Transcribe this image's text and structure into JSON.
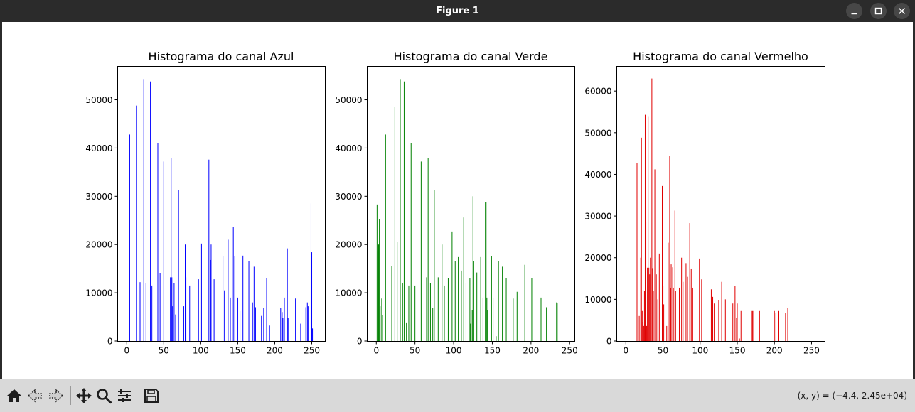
{
  "window": {
    "title": "Figure 1",
    "buttons": [
      "minimize-icon",
      "maximize-icon",
      "close-icon"
    ]
  },
  "toolbar": {
    "tools": [
      "home-icon",
      "back-arrow-icon",
      "forward-arrow-icon",
      "pan-icon",
      "zoom-icon",
      "configure-subplots-icon",
      "save-icon"
    ],
    "coords": "(x, y) = (−4.4, 2.45e+04)"
  },
  "chart_data": [
    {
      "type": "bar",
      "title": "Histograma do canal Azul",
      "color": "#0000ff",
      "xlim": [
        -12.75,
        267.75
      ],
      "ylim": [
        0,
        57000
      ],
      "xticks": [
        0,
        50,
        100,
        150,
        200,
        250
      ],
      "yticks": [
        0,
        10000,
        20000,
        30000,
        40000,
        50000
      ],
      "x": [
        4,
        13,
        18,
        23,
        26,
        32,
        34,
        42,
        45,
        50,
        59,
        60,
        61,
        62,
        64,
        66,
        70,
        77,
        79,
        80,
        85,
        97,
        101,
        111,
        113,
        114,
        118,
        130,
        132,
        137,
        140,
        144,
        146,
        150,
        153,
        157,
        165,
        170,
        172,
        174,
        182,
        185,
        189,
        193,
        208,
        210,
        211,
        213,
        217,
        218,
        228,
        235,
        242,
        244,
        245,
        249,
        250,
        251
      ],
      "values": [
        42800,
        48800,
        12200,
        54300,
        12000,
        53800,
        11500,
        41000,
        14000,
        37200,
        13200,
        38000,
        13200,
        7200,
        12000,
        5500,
        31300,
        7200,
        20000,
        13200,
        11500,
        12800,
        20200,
        37600,
        16800,
        20000,
        12800,
        17600,
        10500,
        21000,
        9000,
        23600,
        17600,
        9000,
        6200,
        17700,
        16500,
        8000,
        15400,
        7000,
        5200,
        6800,
        13100,
        3200,
        6800,
        6000,
        4800,
        9000,
        19200,
        4800,
        8800,
        3600,
        7000,
        8000,
        7200,
        28500,
        18400,
        2600
      ]
    },
    {
      "type": "bar",
      "title": "Histograma do canal Verde",
      "color": "#008000",
      "xlim": [
        -12.2,
        256.2
      ],
      "ylim": [
        0,
        57000
      ],
      "xticks": [
        0,
        50,
        100,
        150,
        200,
        250
      ],
      "yticks": [
        0,
        10000,
        20000,
        30000,
        40000,
        50000
      ],
      "x": [
        1,
        2,
        3,
        4,
        5,
        7,
        8,
        12,
        20,
        24,
        27,
        31,
        34,
        36,
        39,
        42,
        45,
        50,
        58,
        65,
        67,
        70,
        73,
        75,
        80,
        85,
        88,
        93,
        98,
        102,
        106,
        110,
        113,
        116,
        121,
        122,
        124,
        125,
        126,
        130,
        135,
        138,
        141,
        142,
        143,
        144,
        149,
        151,
        155,
        158,
        163,
        168,
        177,
        182,
        192,
        201,
        213,
        220,
        233,
        234
      ],
      "values": [
        28300,
        18500,
        20000,
        25300,
        7200,
        8800,
        5400,
        42800,
        15500,
        48600,
        20500,
        54300,
        12000,
        53800,
        3700,
        11500,
        41000,
        11500,
        37200,
        13200,
        38000,
        12000,
        6800,
        31300,
        13200,
        20000,
        11500,
        13000,
        22700,
        16500,
        17400,
        14600,
        25600,
        12000,
        13000,
        3600,
        6400,
        30000,
        16500,
        14200,
        17400,
        9000,
        28800,
        28800,
        9000,
        6400,
        17600,
        9000,
        1000,
        16500,
        15400,
        13000,
        8800,
        10200,
        15800,
        13000,
        9000,
        7000,
        8000,
        7800
      ]
    },
    {
      "type": "bar",
      "title": "Histograma do canal Vermelho",
      "color": "#e00000",
      "xlim": [
        -12.75,
        267.75
      ],
      "ylim": [
        0,
        66000
      ],
      "xticks": [
        0,
        50,
        100,
        150,
        200,
        250
      ],
      "yticks": [
        0,
        10000,
        20000,
        30000,
        40000,
        50000,
        60000
      ],
      "x": [
        15,
        18,
        20,
        21,
        22,
        23,
        24,
        25,
        26,
        27,
        28,
        29,
        30,
        31,
        32,
        33,
        35,
        36,
        37,
        39,
        41,
        43,
        45,
        49,
        50,
        51,
        55,
        57,
        59,
        60,
        61,
        63,
        64,
        66,
        67,
        72,
        75,
        77,
        81,
        83,
        86,
        88,
        90,
        99,
        102,
        115,
        117,
        119,
        125,
        129,
        134,
        144,
        147,
        149,
        150,
        153,
        155,
        170,
        171,
        180,
        200,
        202,
        206,
        215,
        218
      ],
      "values": [
        42800,
        6000,
        20000,
        48800,
        7200,
        4500,
        3600,
        12000,
        54300,
        28500,
        3600,
        17600,
        53800,
        17600,
        16000,
        20000,
        63000,
        17500,
        12000,
        41200,
        16000,
        10000,
        21000,
        37200,
        13200,
        8800,
        3600,
        23600,
        44400,
        12800,
        18400,
        17700,
        12800,
        31300,
        12000,
        12800,
        20000,
        14200,
        18700,
        15400,
        28300,
        17400,
        12800,
        19800,
        14800,
        12400,
        10600,
        9000,
        9800,
        14200,
        10000,
        9000,
        13200,
        5500,
        9000,
        600,
        7200,
        7200,
        7200,
        7200,
        7200,
        6800,
        7200,
        6800,
        8000
      ]
    }
  ]
}
